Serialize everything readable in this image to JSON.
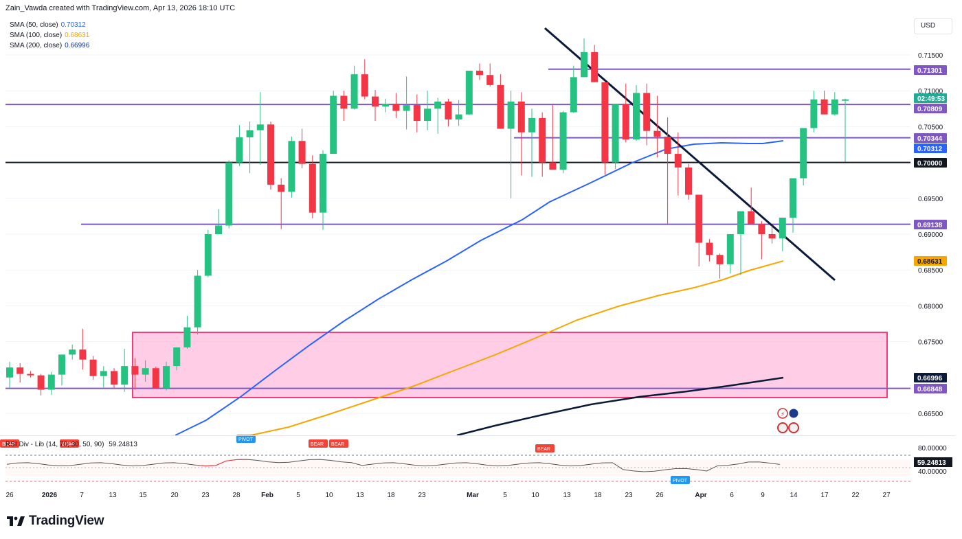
{
  "header": {
    "title": "Zain_Vawda created with TradingView.com, Apr 13, 2026 18:10 UTC"
  },
  "toolbar": {
    "currency": "USD"
  },
  "indicators": [
    {
      "label": "SMA (50, close)",
      "value": "0.70312",
      "color": "#2962ff"
    },
    {
      "label": "SMA (100, close)",
      "value": "0.68631",
      "color": "#f7a600"
    },
    {
      "label": "SMA (200, close)",
      "value": "0.66996",
      "color": "#0c3299"
    }
  ],
  "price_axis": {
    "ticks": [
      "0.71500",
      "0.71000",
      "0.70500",
      "0.69500",
      "0.69000",
      "0.68500",
      "0.68000",
      "0.67500",
      "0.66500"
    ],
    "labels": [
      {
        "text": "0.71301",
        "bg": "#7e57c2",
        "fg": "#ffffff"
      },
      {
        "text": "02:49:53",
        "bg": "#22ab94",
        "fg": "#ffffff"
      },
      {
        "text": "0.70809",
        "bg": "#7e57c2",
        "fg": "#ffffff"
      },
      {
        "text": "0.70344",
        "bg": "#7e57c2",
        "fg": "#ffffff"
      },
      {
        "text": "0.70312",
        "bg": "#2962ff",
        "fg": "#ffffff"
      },
      {
        "text": "0.70000",
        "bg": "#131722",
        "fg": "#ffffff"
      },
      {
        "text": "0.69138",
        "bg": "#7e57c2",
        "fg": "#ffffff"
      },
      {
        "text": "0.68631",
        "bg": "#f7a600",
        "fg": "#131722"
      },
      {
        "text": "0.66996",
        "bg": "#0c1a3a",
        "fg": "#ffffff"
      },
      {
        "text": "0.66848",
        "bg": "#7e57c2",
        "fg": "#ffffff"
      }
    ]
  },
  "rsi": {
    "title": "RSI Div - Lib (14, 70, 30, 50, 90)",
    "value": "59.24813",
    "axis": [
      "80.00000",
      "40.00000"
    ],
    "badges": [
      {
        "text": "PIVOT",
        "color": "#2196f3"
      },
      {
        "text": "BEAR",
        "color": "#f44336"
      },
      {
        "text": "BEAR",
        "color": "#f44336"
      },
      {
        "text": "BEAR",
        "color": "#f44336"
      },
      {
        "text": "BEAR",
        "color": "#f44336"
      },
      {
        "text": "PIVOT",
        "color": "#2196f3"
      }
    ]
  },
  "time_axis": [
    "26",
    "2026",
    "7",
    "10",
    "13",
    "15",
    "20",
    "23",
    "28",
    "Feb",
    "5",
    "10",
    "13",
    "18",
    "23",
    "Mar",
    "5",
    "10",
    "13",
    "18",
    "23",
    "26",
    "Apr",
    "6",
    "9",
    "14",
    "17",
    "22",
    "27"
  ],
  "footer": {
    "brand": "TradingView"
  },
  "colors": {
    "up": "#26c281",
    "down": "#f23645",
    "level": "#7e57c2",
    "sma50": "#2962ff",
    "sma100": "#f7a600",
    "sma200": "#0c1a3a",
    "zone": "#f23d7a"
  },
  "chart_data": {
    "type": "candlestick",
    "symbol_currency": "USD",
    "y_range": [
      0.6625,
      0.7185
    ],
    "candles_ohlc": [
      [
        0.67,
        0.6722,
        0.6685,
        0.6714
      ],
      [
        0.6714,
        0.672,
        0.6693,
        0.6705
      ],
      [
        0.6705,
        0.6709,
        0.67,
        0.6703
      ],
      [
        0.6703,
        0.6705,
        0.6675,
        0.6683
      ],
      [
        0.6683,
        0.6708,
        0.6676,
        0.6704
      ],
      [
        0.6704,
        0.672,
        0.6689,
        0.6732
      ],
      [
        0.6732,
        0.6746,
        0.6725,
        0.6739
      ],
      [
        0.6739,
        0.6768,
        0.6711,
        0.6725
      ],
      [
        0.6725,
        0.673,
        0.6697,
        0.6702
      ],
      [
        0.6702,
        0.6716,
        0.6686,
        0.6709
      ],
      [
        0.6709,
        0.6713,
        0.6685,
        0.669
      ],
      [
        0.669,
        0.674,
        0.668,
        0.6716
      ],
      [
        0.6716,
        0.6727,
        0.6683,
        0.6704
      ],
      [
        0.6704,
        0.6724,
        0.6694,
        0.6713
      ],
      [
        0.6713,
        0.6715,
        0.6685,
        0.6685
      ],
      [
        0.6685,
        0.6722,
        0.6682,
        0.6716
      ],
      [
        0.6716,
        0.6742,
        0.671,
        0.6742
      ],
      [
        0.6742,
        0.6786,
        0.674,
        0.677
      ],
      [
        0.677,
        0.685,
        0.676,
        0.6842
      ],
      [
        0.6842,
        0.6906,
        0.684,
        0.69
      ],
      [
        0.69,
        0.6935,
        0.6905,
        0.6912
      ],
      [
        0.6912,
        0.7003,
        0.6908,
        0.7
      ],
      [
        0.7,
        0.7052,
        0.6995,
        0.7035
      ],
      [
        0.7035,
        0.7057,
        0.6985,
        0.7045
      ],
      [
        0.7045,
        0.7098,
        0.6997,
        0.7053
      ],
      [
        0.7053,
        0.7057,
        0.6962,
        0.6969
      ],
      [
        0.6969,
        0.6978,
        0.6907,
        0.6959
      ],
      [
        0.6959,
        0.7036,
        0.6951,
        0.703
      ],
      [
        0.703,
        0.7047,
        0.6992,
        0.6998
      ],
      [
        0.6998,
        0.701,
        0.6922,
        0.693
      ],
      [
        0.693,
        0.7017,
        0.6906,
        0.7012
      ],
      [
        0.7012,
        0.71,
        0.7012,
        0.7093
      ],
      [
        0.7093,
        0.71,
        0.7058,
        0.7075
      ],
      [
        0.7075,
        0.7135,
        0.7074,
        0.7123
      ],
      [
        0.7123,
        0.7144,
        0.7088,
        0.7092
      ],
      [
        0.7092,
        0.7101,
        0.7058,
        0.7078
      ],
      [
        0.7078,
        0.7089,
        0.707,
        0.7082
      ],
      [
        0.7082,
        0.7097,
        0.7062,
        0.7072
      ],
      [
        0.7072,
        0.712,
        0.7046,
        0.708
      ],
      [
        0.708,
        0.7095,
        0.7042,
        0.7058
      ],
      [
        0.7058,
        0.71,
        0.7045,
        0.7075
      ],
      [
        0.7075,
        0.709,
        0.704,
        0.7085
      ],
      [
        0.7085,
        0.7089,
        0.705,
        0.706
      ],
      [
        0.706,
        0.7087,
        0.7051,
        0.7067
      ],
      [
        0.7067,
        0.7128,
        0.7066,
        0.7128
      ],
      [
        0.7128,
        0.7138,
        0.7115,
        0.7122
      ],
      [
        0.7122,
        0.7138,
        0.7106,
        0.7108
      ],
      [
        0.7108,
        0.7123,
        0.7068,
        0.7047
      ],
      [
        0.7047,
        0.71,
        0.695,
        0.7085
      ],
      [
        0.7085,
        0.7098,
        0.6982,
        0.7042
      ],
      [
        0.7042,
        0.7075,
        0.698,
        0.7062
      ],
      [
        0.7062,
        0.707,
        0.698,
        0.7
      ],
      [
        0.7,
        0.708,
        0.699,
        0.699
      ],
      [
        0.699,
        0.7072,
        0.6985,
        0.707
      ],
      [
        0.707,
        0.7135,
        0.7069,
        0.7119
      ],
      [
        0.7119,
        0.7173,
        0.712,
        0.7154
      ],
      [
        0.7154,
        0.7164,
        0.7112,
        0.7112
      ],
      [
        0.7112,
        0.7095,
        0.6983,
        0.7
      ],
      [
        0.7,
        0.7082,
        0.6991,
        0.7081
      ],
      [
        0.7081,
        0.711,
        0.7028,
        0.7032
      ],
      [
        0.7032,
        0.7108,
        0.703,
        0.7097
      ],
      [
        0.7097,
        0.711,
        0.7024,
        0.7044
      ],
      [
        0.7044,
        0.7093,
        0.7007,
        0.7036
      ],
      [
        0.7036,
        0.7063,
        0.6914,
        0.7012
      ],
      [
        0.7012,
        0.7042,
        0.6954,
        0.6993
      ],
      [
        0.6993,
        0.6998,
        0.6948,
        0.6955
      ],
      [
        0.6955,
        0.6948,
        0.6855,
        0.6888
      ],
      [
        0.6888,
        0.6893,
        0.6862,
        0.6871
      ],
      [
        0.6871,
        0.6873,
        0.6838,
        0.6858
      ],
      [
        0.6858,
        0.6878,
        0.6845,
        0.69
      ],
      [
        0.69,
        0.6908,
        0.6843,
        0.6932
      ],
      [
        0.6932,
        0.6965,
        0.6915,
        0.6914
      ],
      [
        0.6914,
        0.6918,
        0.6865,
        0.69
      ],
      [
        0.69,
        0.6912,
        0.6887,
        0.6894
      ],
      [
        0.6894,
        0.6908,
        0.6876,
        0.6923
      ],
      [
        0.6923,
        0.6938,
        0.6902,
        0.6978
      ],
      [
        0.6978,
        0.6992,
        0.6968,
        0.7048
      ],
      [
        0.7048,
        0.71,
        0.7042,
        0.7088
      ],
      [
        0.7088,
        0.71,
        0.707,
        0.7067
      ],
      [
        0.7067,
        0.7098,
        0.7065,
        0.7088
      ],
      [
        0.7088,
        0.7089,
        0.7001,
        0.7088
      ]
    ],
    "horizontal_levels": [
      0.71301,
      0.70809,
      0.70344,
      0.7,
      0.69138,
      0.66848
    ],
    "sma50_last": 0.70312,
    "sma100_last": 0.68631,
    "sma200_last": 0.66996,
    "rsi_last": 59.24813,
    "rsi_levels": [
      80,
      70,
      50,
      40,
      30
    ]
  }
}
